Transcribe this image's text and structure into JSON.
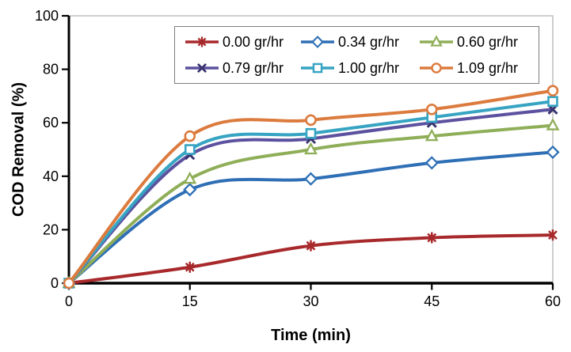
{
  "chart_data": {
    "type": "line",
    "title": "",
    "xlabel": "Time (min)",
    "ylabel": "COD Removal (%)",
    "x": [
      0,
      15,
      30,
      45,
      60
    ],
    "x_ticks": [
      0,
      15,
      30,
      45,
      60
    ],
    "y_ticks": [
      0,
      20,
      40,
      60,
      80,
      100
    ],
    "xlim": [
      0,
      60
    ],
    "ylim": [
      0,
      100
    ],
    "grid": false,
    "line_style": "smooth",
    "legend": {
      "position": "top-center",
      "boxed": true,
      "rows": 2,
      "columns": 3
    },
    "series": [
      {
        "name": "0.00 gr/hr",
        "color": "#A8292B",
        "marker": "asterisk",
        "values": [
          0,
          6,
          14,
          17,
          18
        ]
      },
      {
        "name": "0.34 gr/hr",
        "color": "#2E6FB5",
        "marker": "diamond",
        "values": [
          0,
          35,
          39,
          45,
          49
        ]
      },
      {
        "name": "0.60 gr/hr",
        "color": "#8FAE58",
        "marker": "triangle",
        "values": [
          0,
          39,
          50,
          55,
          59
        ]
      },
      {
        "name": "0.79 gr/hr",
        "color": "#5B519F",
        "marker": "x",
        "marker_color": "#38336E",
        "values": [
          0,
          48,
          54,
          60,
          65
        ]
      },
      {
        "name": "1.00 gr/hr",
        "color": "#36A4C2",
        "marker": "square",
        "values": [
          0,
          50,
          56,
          62,
          68
        ]
      },
      {
        "name": "1.09 gr/hr",
        "color": "#DC7B3E",
        "marker": "circle",
        "values": [
          0,
          55,
          61,
          65,
          72
        ]
      }
    ],
    "colors": {
      "axis": "#000000",
      "plot_border": "#b2b2b2",
      "text": "#000000",
      "background": "#ffffff"
    }
  }
}
